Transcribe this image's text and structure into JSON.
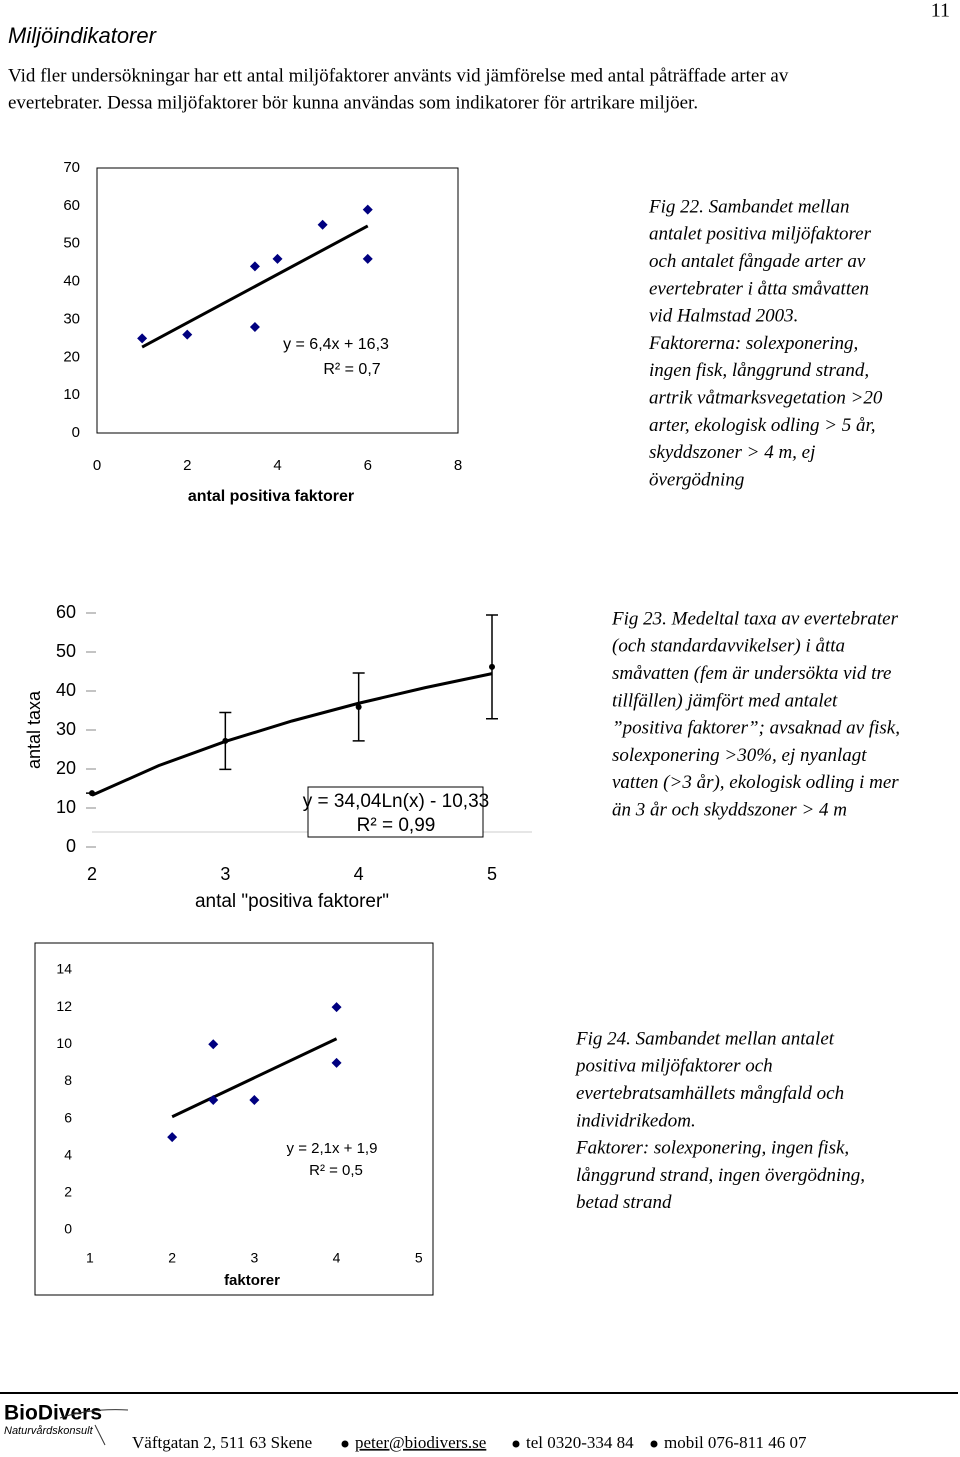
{
  "page_number": "11",
  "header": {
    "title": "Miljöindikatorer"
  },
  "intro": [
    "Vid fler undersökningar har ett antal miljöfaktorer använts vid jämförelse med antal påträffade arter av",
    "evertebrater. Dessa miljöfaktorer bör kunna användas som indikatorer för artrikare miljöer."
  ],
  "chart_data": [
    {
      "type": "scatter",
      "x_label": "antal positiva faktorer",
      "annotations": [
        "y = 6,4x + 16,3",
        "R² = 0,7"
      ],
      "x": [
        1,
        2,
        3.5,
        3.5,
        4,
        5,
        6,
        6
      ],
      "values": [
        25,
        26,
        44,
        28,
        46,
        55,
        59,
        46
      ],
      "color": "#000080",
      "trendline": {
        "x": [
          1,
          6
        ],
        "y": [
          22.7,
          54.7
        ]
      },
      "xlim": [
        0,
        8
      ],
      "xticks": [
        0,
        2,
        4,
        6,
        8
      ],
      "ylim": [
        0,
        70
      ],
      "yticks": [
        0,
        10,
        20,
        30,
        40,
        50,
        60,
        70
      ],
      "caption": [
        "Fig 22. Sambandet mellan",
        "antalet positiva miljöfaktorer",
        "och antalet fångade arter av",
        "evertebrater i åtta småvatten",
        "vid Halmstad 2003.",
        "Faktorerna: solexponering,",
        "ingen fisk, långgrund strand,",
        "artrik våtmarksvegetation >20",
        "arter, ekologisk odling > 5 år,",
        "skyddszoner > 4 m, ej",
        "övergödning"
      ]
    },
    {
      "type": "scatter",
      "x_label": "antal \"positiva faktorer\"",
      "y_label": "antal taxa",
      "annotations": [
        "y = 34,04Ln(x) - 10,33",
        "R² = 0,99"
      ],
      "x": [
        2,
        3,
        4,
        5
      ],
      "values": [
        13.8,
        27.2,
        35.9,
        46.2
      ],
      "errors": [
        0,
        7.3,
        8.7,
        13.3
      ],
      "color": "#000000",
      "trendline": {
        "x": [
          2,
          2.5,
          3,
          3.5,
          4,
          4.5,
          5
        ],
        "y": [
          13.26,
          20.86,
          27.07,
          32.31,
          36.86,
          40.87,
          44.45
        ]
      },
      "xlim": [
        2,
        5.3
      ],
      "xticks": [
        2,
        3,
        4,
        5
      ],
      "ylim": [
        0,
        60
      ],
      "yticks": [
        0,
        10,
        20,
        30,
        40,
        50,
        60
      ],
      "caption": [
        "Fig 23. Medeltal taxa av evertebrater",
        "(och standardavvikelser) i åtta",
        "småvatten (fem är undersökta vid tre",
        "tillfällen) jämfört med antalet",
        "”positiva faktorer”; avsaknad av fisk,",
        "solexponering >30%, ej nyanlagt",
        "vatten (>3 år), ekologisk odling i mer",
        "än 3 år och skyddszoner > 4 m"
      ]
    },
    {
      "type": "scatter",
      "x_label": "faktorer",
      "annotations": [
        "y = 2,1x + 1,9",
        "R² = 0,5"
      ],
      "x": [
        2,
        2.5,
        2.5,
        3,
        4,
        4
      ],
      "values": [
        5,
        10,
        7,
        7,
        12,
        9
      ],
      "color": "#000080",
      "trendline": {
        "x": [
          2,
          4
        ],
        "y": [
          6.1,
          10.3
        ]
      },
      "xlim": [
        0.8,
        5.1
      ],
      "xticks": [
        1,
        2,
        3,
        4,
        5
      ],
      "ylim": [
        0,
        14
      ],
      "yticks": [
        0,
        2,
        4,
        6,
        8,
        10,
        12,
        14
      ],
      "caption": [
        "Fig 24. Sambandet mellan antalet",
        "positiva miljöfaktorer och",
        "evertebratsamhällets mångfald och",
        "individrikedom.",
        "Faktorer: solexponering, ingen fisk,",
        "långgrund strand, ingen övergödning,",
        "betad strand"
      ]
    }
  ],
  "footer": {
    "logo": "BioDivers",
    "logo_sub": "Naturvårdskonsult",
    "items": [
      "Väftgatan 2, 511 63 Skene",
      "peter@biodivers.se",
      "tel 0320-334 84",
      "mobil 076-811 46 07"
    ]
  }
}
